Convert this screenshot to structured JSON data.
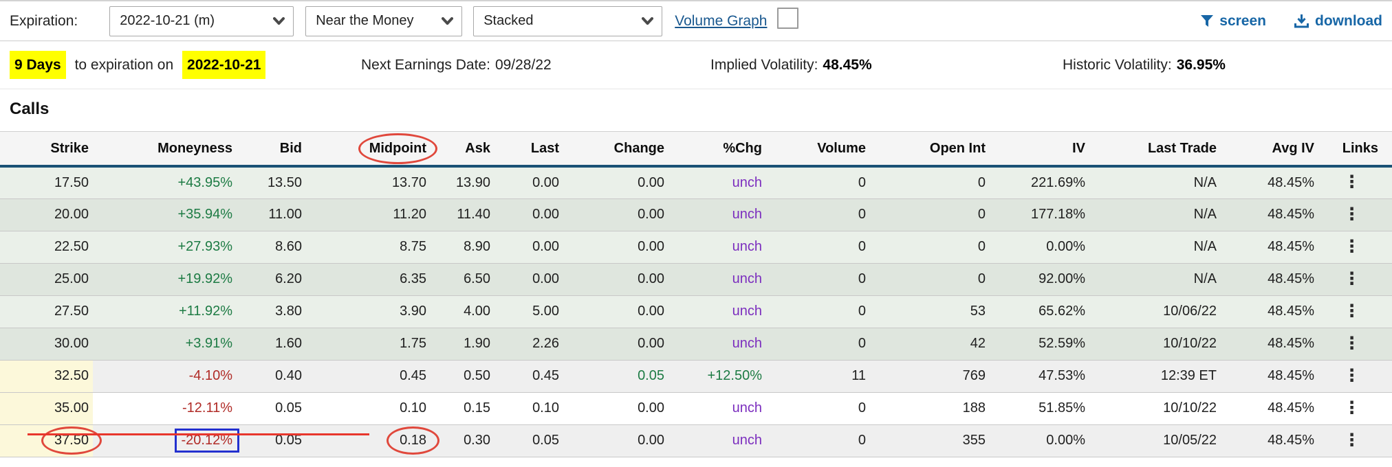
{
  "toolbar": {
    "expiration_label": "Expiration:",
    "expiration_value": "2022-10-21 (m)",
    "strikes_filter_value": "Near the Money",
    "view_mode_value": "Stacked",
    "volume_graph_label": "Volume Graph",
    "screen_label": "screen",
    "download_label": "download"
  },
  "info_bar": {
    "days_to_expiration": "9 Days",
    "to_expiration_text": "to expiration on",
    "expiration_date": "2022-10-21",
    "earnings_label": "Next Earnings Date:",
    "earnings_value": "09/28/22",
    "implied_vol_label": "Implied Volatility:",
    "implied_vol_value": "48.45%",
    "historic_vol_label": "Historic Volatility:",
    "historic_vol_value": "36.95%"
  },
  "section_title": "Calls",
  "table": {
    "links_icon": "⋮",
    "columns": [
      {
        "key": "strike",
        "label": "Strike"
      },
      {
        "key": "moneyness",
        "label": "Moneyness"
      },
      {
        "key": "bid",
        "label": "Bid"
      },
      {
        "key": "midpoint",
        "label": "Midpoint",
        "highlight": true,
        "circled": true
      },
      {
        "key": "ask",
        "label": "Ask"
      },
      {
        "key": "last",
        "label": "Last"
      },
      {
        "key": "change",
        "label": "Change"
      },
      {
        "key": "pct_chg",
        "label": "%Chg"
      },
      {
        "key": "volume",
        "label": "Volume"
      },
      {
        "key": "open_int",
        "label": "Open Int"
      },
      {
        "key": "iv",
        "label": "IV"
      },
      {
        "key": "last_trade",
        "label": "Last Trade"
      },
      {
        "key": "avg_iv",
        "label": "Avg IV"
      },
      {
        "key": "links",
        "label": "Links"
      }
    ],
    "rows": [
      {
        "bg": "g1",
        "values": {
          "strike": "17.50",
          "moneyness": "+43.95%",
          "bid": "13.50",
          "midpoint": "13.70",
          "ask": "13.90",
          "last": "0.00",
          "change": "0.00",
          "pct_chg": "unch",
          "volume": "0",
          "open_int": "0",
          "iv": "221.69%",
          "last_trade": "N/A",
          "avg_iv": "48.45%"
        },
        "cls": {
          "moneyness": "pos",
          "pct_chg": "unch"
        }
      },
      {
        "bg": "g2",
        "values": {
          "strike": "20.00",
          "moneyness": "+35.94%",
          "bid": "11.00",
          "midpoint": "11.20",
          "ask": "11.40",
          "last": "0.00",
          "change": "0.00",
          "pct_chg": "unch",
          "volume": "0",
          "open_int": "0",
          "iv": "177.18%",
          "last_trade": "N/A",
          "avg_iv": "48.45%"
        },
        "cls": {
          "moneyness": "pos",
          "pct_chg": "unch"
        }
      },
      {
        "bg": "g1",
        "values": {
          "strike": "22.50",
          "moneyness": "+27.93%",
          "bid": "8.60",
          "midpoint": "8.75",
          "ask": "8.90",
          "last": "0.00",
          "change": "0.00",
          "pct_chg": "unch",
          "volume": "0",
          "open_int": "0",
          "iv": "0.00%",
          "last_trade": "N/A",
          "avg_iv": "48.45%"
        },
        "cls": {
          "moneyness": "pos",
          "pct_chg": "unch"
        }
      },
      {
        "bg": "g2",
        "values": {
          "strike": "25.00",
          "moneyness": "+19.92%",
          "bid": "6.20",
          "midpoint": "6.35",
          "ask": "6.50",
          "last": "0.00",
          "change": "0.00",
          "pct_chg": "unch",
          "volume": "0",
          "open_int": "0",
          "iv": "92.00%",
          "last_trade": "N/A",
          "avg_iv": "48.45%"
        },
        "cls": {
          "moneyness": "pos",
          "pct_chg": "unch"
        }
      },
      {
        "bg": "g1",
        "values": {
          "strike": "27.50",
          "moneyness": "+11.92%",
          "bid": "3.80",
          "midpoint": "3.90",
          "ask": "4.00",
          "last": "5.00",
          "change": "0.00",
          "pct_chg": "unch",
          "volume": "0",
          "open_int": "53",
          "iv": "65.62%",
          "last_trade": "10/06/22",
          "avg_iv": "48.45%"
        },
        "cls": {
          "moneyness": "pos",
          "pct_chg": "unch"
        }
      },
      {
        "bg": "g2",
        "values": {
          "strike": "30.00",
          "moneyness": "+3.91%",
          "bid": "1.60",
          "midpoint": "1.75",
          "ask": "1.90",
          "last": "2.26",
          "change": "0.00",
          "pct_chg": "unch",
          "volume": "0",
          "open_int": "42",
          "iv": "52.59%",
          "last_trade": "10/10/22",
          "avg_iv": "48.45%"
        },
        "cls": {
          "moneyness": "pos",
          "pct_chg": "unch"
        }
      },
      {
        "bg": "oa",
        "strike_yellow": true,
        "values": {
          "strike": "32.50",
          "moneyness": "-4.10%",
          "bid": "0.40",
          "midpoint": "0.45",
          "ask": "0.50",
          "last": "0.45",
          "change": "0.05",
          "pct_chg": "+12.50%",
          "volume": "11",
          "open_int": "769",
          "iv": "47.53%",
          "last_trade": "12:39 ET",
          "avg_iv": "48.45%"
        },
        "cls": {
          "moneyness": "neg",
          "change": "pos",
          "pct_chg": "pos"
        }
      },
      {
        "bg": "ob",
        "strike_yellow": true,
        "values": {
          "strike": "35.00",
          "moneyness": "-12.11%",
          "bid": "0.05",
          "midpoint": "0.10",
          "ask": "0.15",
          "last": "0.10",
          "change": "0.00",
          "pct_chg": "unch",
          "volume": "0",
          "open_int": "188",
          "iv": "51.85%",
          "last_trade": "10/10/22",
          "avg_iv": "48.45%"
        },
        "cls": {
          "moneyness": "neg",
          "pct_chg": "unch"
        }
      },
      {
        "bg": "oa",
        "strike_yellow": true,
        "values": {
          "strike": "37.50",
          "moneyness": "-20.12%",
          "bid": "0.05",
          "midpoint": "0.18",
          "ask": "0.30",
          "last": "0.05",
          "change": "0.00",
          "pct_chg": "unch",
          "volume": "0",
          "open_int": "355",
          "iv": "0.00%",
          "last_trade": "10/05/22",
          "avg_iv": "48.45%"
        },
        "cls": {
          "moneyness": "neg",
          "pct_chg": "unch"
        },
        "ann": {
          "strike": "circle-red",
          "moneyness": "box-blue",
          "midpoint": "circle-red"
        }
      }
    ]
  },
  "colors": {
    "accent_blue": "#1766a6",
    "link_blue": "#19588f",
    "highlight_yellow": "#ffff00",
    "positive_green": "#1d7b44",
    "negative_red": "#b02b27",
    "unchanged_purple": "#7b2dbe",
    "header_underline_blue": "#1a5276",
    "annotation_red": "#e0483c",
    "annotation_blue": "#2330cf",
    "row_green_light": "#eaf0e9",
    "row_green_dark": "#dfe6de",
    "strike_otm_yellow": "#fcf8da"
  }
}
